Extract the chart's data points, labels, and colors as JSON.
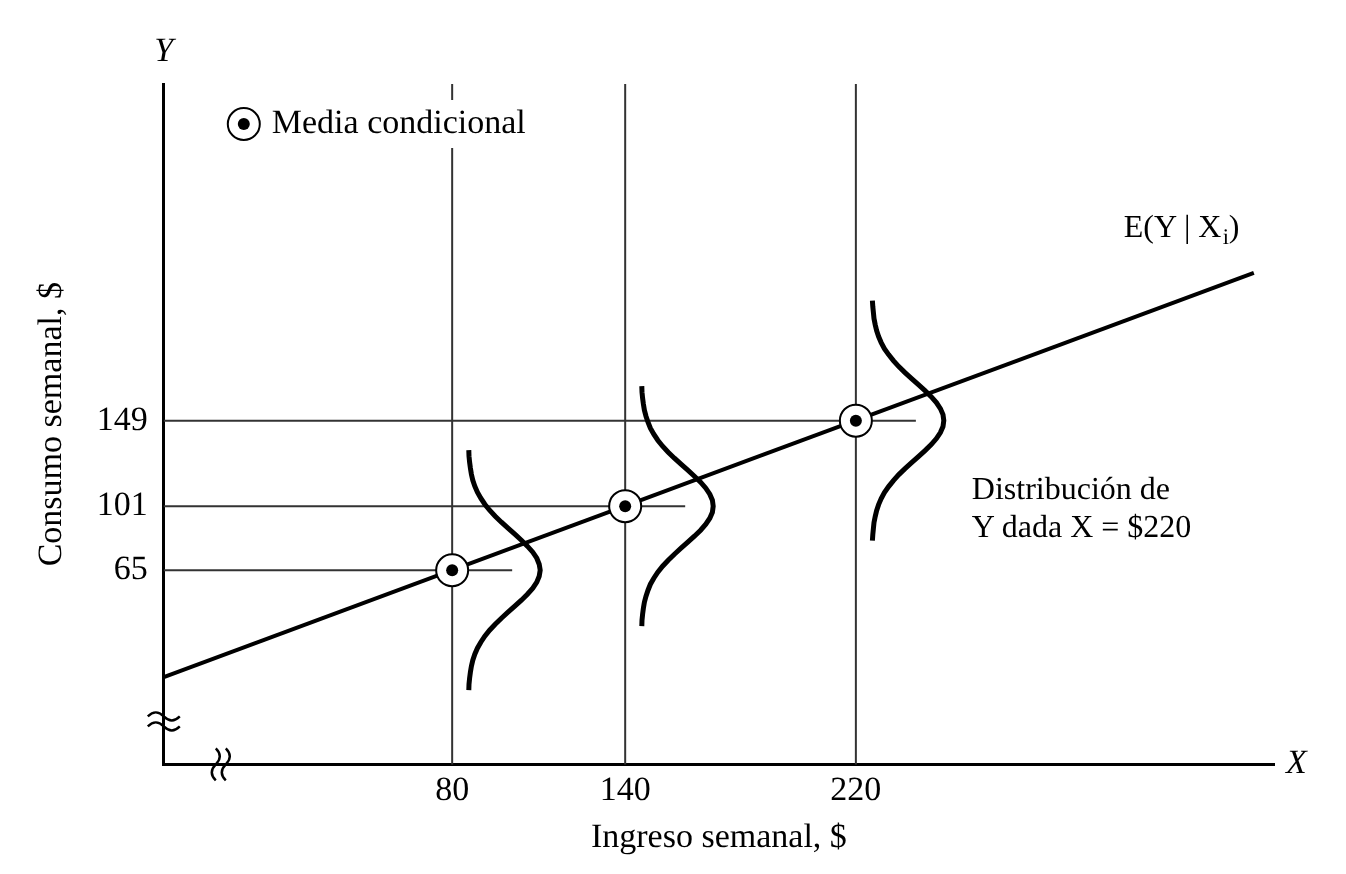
{
  "chart_data": {
    "type": "scatter",
    "xlabel": "Ingreso semanal, $",
    "ylabel": "Consumo semanal, $",
    "xlim": [
      -20,
      365
    ],
    "ylim": [
      -44,
      338
    ],
    "xticks": [
      80,
      140,
      220
    ],
    "yticks": [
      65,
      101,
      149
    ],
    "series": [
      {
        "name": "Media condicional",
        "marker": "circle",
        "color": "#000000",
        "x": [
          80,
          140,
          220
        ],
        "values": [
          65,
          101,
          149
        ]
      },
      {
        "type": "line",
        "marker": "none",
        "color": "#000000",
        "x": [
          -20,
          358
        ],
        "values": [
          5,
          232
        ]
      }
    ],
    "ref_lines": [
      {
        "axis": "x",
        "value": 80,
        "color": "#333333"
      },
      {
        "axis": "x",
        "value": 140,
        "color": "#333333"
      },
      {
        "axis": "x",
        "value": 220,
        "color": "#333333"
      },
      {
        "axis": "y",
        "value": 65,
        "color": "#333333"
      },
      {
        "axis": "y",
        "value": 101,
        "color": "#333333"
      },
      {
        "axis": "y",
        "value": 149,
        "color": "#333333"
      }
    ],
    "annotations": [
      "Y",
      "X",
      "E(Y | X$_{i}$)",
      "Distribución de\nY dada X = $220"
    ],
    "legend": "top left",
    "grid": false,
    "line_style": "solid"
  }
}
